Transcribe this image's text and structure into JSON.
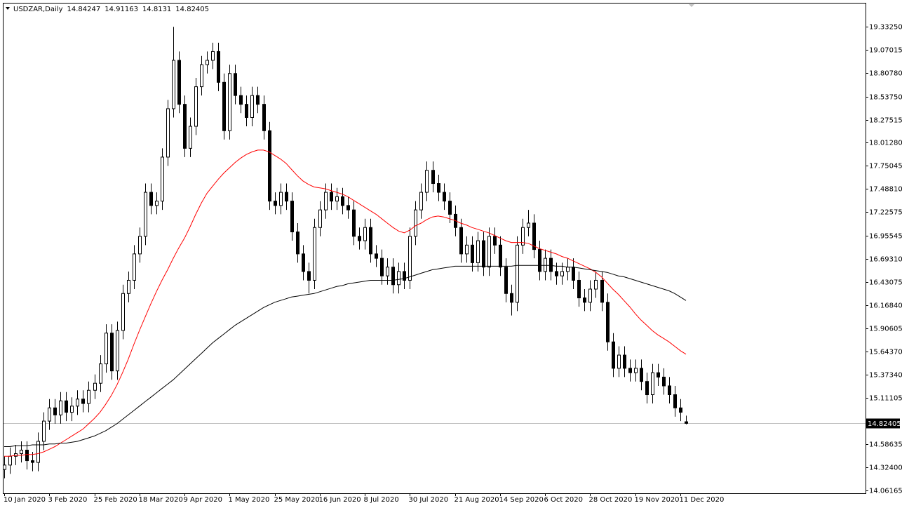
{
  "chart_data": {
    "type": "candlestick",
    "symbol": "USDZAR,Daily",
    "categories": [
      "10 Jan 2020",
      null,
      null,
      null,
      null,
      null,
      null,
      null,
      "3 Feb 2020",
      null,
      null,
      null,
      null,
      null,
      null,
      null,
      "25 Feb 2020",
      null,
      null,
      null,
      null,
      null,
      null,
      null,
      "18 Mar 2020",
      null,
      null,
      null,
      null,
      null,
      null,
      null,
      "9 Apr 2020",
      null,
      null,
      null,
      null,
      null,
      null,
      null,
      "1 May 2020",
      null,
      null,
      null,
      null,
      null,
      null,
      null,
      "25 May 2020",
      null,
      null,
      null,
      null,
      null,
      null,
      null,
      "16 Jun 2020",
      null,
      null,
      null,
      null,
      null,
      null,
      null,
      "8 Jul 2020",
      null,
      null,
      null,
      null,
      null,
      null,
      null,
      "30 Jul 2020",
      null,
      null,
      null,
      null,
      null,
      null,
      null,
      "21 Aug 2020",
      null,
      null,
      null,
      null,
      null,
      null,
      null,
      "14 Sep 2020",
      null,
      null,
      null,
      null,
      null,
      null,
      null,
      "6 Oct 2020",
      null,
      null,
      null,
      null,
      null,
      null,
      null,
      "28 Oct 2020",
      null,
      null,
      null,
      null,
      null,
      null,
      null,
      "19 Nov 2020",
      null,
      null,
      null,
      null,
      null,
      null,
      null,
      "11 Dec 2020",
      null
    ],
    "open": [
      14.3,
      14.35,
      14.45,
      14.48,
      14.52,
      14.4,
      14.38,
      14.62,
      14.85,
      15.0,
      14.92,
      15.08,
      14.95,
      15.02,
      15.1,
      15.05,
      15.2,
      15.28,
      15.5,
      15.85,
      15.42,
      15.88,
      16.3,
      16.45,
      16.75,
      16.95,
      17.45,
      17.3,
      17.35,
      17.85,
      18.4,
      18.95,
      18.45,
      17.95,
      18.2,
      18.65,
      18.9,
      18.95,
      19.05,
      18.7,
      18.15,
      18.8,
      18.55,
      18.45,
      18.3,
      18.55,
      18.45,
      18.15,
      17.35,
      17.3,
      17.45,
      17.35,
      17.0,
      16.75,
      16.55,
      16.45,
      17.05,
      17.25,
      17.45,
      17.35,
      17.4,
      17.3,
      17.25,
      16.95,
      16.9,
      17.05,
      16.75,
      16.7,
      16.5,
      16.6,
      16.4,
      16.55,
      16.45,
      16.95,
      17.25,
      17.45,
      17.7,
      17.55,
      17.45,
      17.35,
      17.2,
      17.05,
      16.75,
      16.85,
      16.65,
      16.9,
      16.6,
      16.95,
      16.85,
      16.6,
      16.3,
      16.2,
      16.85,
      17.05,
      17.1,
      16.8,
      16.55,
      16.7,
      16.55,
      16.5,
      16.55,
      16.6,
      16.45,
      16.25,
      16.2,
      16.35,
      16.45,
      16.2,
      15.75,
      15.45,
      15.6,
      15.45,
      15.4,
      15.45,
      15.3,
      15.15,
      15.4,
      15.35,
      15.25,
      15.15,
      15.0,
      14.84247
    ],
    "high": [
      14.45,
      14.55,
      14.58,
      14.62,
      14.62,
      14.5,
      14.72,
      14.95,
      15.1,
      15.1,
      15.18,
      15.18,
      15.12,
      15.2,
      15.2,
      15.3,
      15.38,
      15.6,
      15.95,
      15.95,
      15.98,
      16.4,
      16.55,
      16.85,
      17.05,
      17.55,
      17.55,
      17.45,
      17.95,
      18.5,
      19.33,
      19.05,
      18.55,
      18.3,
      18.75,
      19.0,
      19.05,
      19.15,
      19.15,
      18.8,
      18.9,
      18.9,
      18.65,
      18.55,
      18.65,
      18.65,
      18.55,
      18.25,
      17.45,
      17.55,
      17.55,
      17.45,
      17.1,
      16.85,
      16.65,
      17.15,
      17.35,
      17.55,
      17.55,
      17.5,
      17.5,
      17.4,
      17.35,
      17.05,
      17.15,
      17.15,
      16.85,
      16.8,
      16.7,
      16.7,
      16.65,
      16.65,
      17.05,
      17.35,
      17.55,
      17.8,
      17.8,
      17.65,
      17.55,
      17.45,
      17.3,
      17.15,
      16.95,
      16.95,
      17.0,
      17.0,
      17.05,
      17.05,
      16.95,
      16.7,
      16.4,
      16.95,
      17.15,
      17.25,
      17.2,
      16.9,
      16.8,
      16.8,
      16.65,
      16.65,
      16.7,
      16.7,
      16.55,
      16.35,
      16.45,
      16.55,
      16.55,
      16.3,
      15.85,
      15.7,
      15.7,
      15.55,
      15.55,
      15.55,
      15.4,
      15.5,
      15.5,
      15.45,
      15.35,
      15.25,
      15.1,
      14.91163
    ],
    "low": [
      14.2,
      14.25,
      14.35,
      14.38,
      14.3,
      14.28,
      14.28,
      14.52,
      14.75,
      14.82,
      14.82,
      14.85,
      14.85,
      14.92,
      14.95,
      14.95,
      15.1,
      15.18,
      15.4,
      15.32,
      15.32,
      15.78,
      16.2,
      16.35,
      16.65,
      16.85,
      17.2,
      17.2,
      17.25,
      17.75,
      18.3,
      18.35,
      17.85,
      17.85,
      18.1,
      18.55,
      18.8,
      18.85,
      18.6,
      18.05,
      18.05,
      18.45,
      18.35,
      18.2,
      18.2,
      18.35,
      18.05,
      17.25,
      17.2,
      17.2,
      17.25,
      16.9,
      16.65,
      16.45,
      16.3,
      16.35,
      16.95,
      17.15,
      17.25,
      17.25,
      17.2,
      17.15,
      16.85,
      16.8,
      16.8,
      16.65,
      16.6,
      16.4,
      16.4,
      16.3,
      16.3,
      16.35,
      16.35,
      16.85,
      17.15,
      17.35,
      17.45,
      17.35,
      17.25,
      17.1,
      16.95,
      16.65,
      16.65,
      16.55,
      16.55,
      16.5,
      16.5,
      16.75,
      16.5,
      16.2,
      16.05,
      16.1,
      16.75,
      16.95,
      16.7,
      16.45,
      16.45,
      16.45,
      16.4,
      16.4,
      16.45,
      16.35,
      16.15,
      16.1,
      16.1,
      16.25,
      16.1,
      15.65,
      15.35,
      15.35,
      15.35,
      15.3,
      15.3,
      15.2,
      15.05,
      15.05,
      15.25,
      15.15,
      15.05,
      14.9,
      14.85,
      14.8131
    ],
    "close": [
      14.35,
      14.45,
      14.48,
      14.52,
      14.4,
      14.38,
      14.62,
      14.85,
      15.0,
      14.92,
      15.08,
      14.95,
      15.02,
      15.1,
      15.05,
      15.2,
      15.28,
      15.5,
      15.85,
      15.42,
      15.88,
      16.3,
      16.45,
      16.75,
      16.95,
      17.45,
      17.3,
      17.35,
      17.85,
      18.4,
      18.95,
      18.45,
      17.95,
      18.2,
      18.65,
      18.9,
      18.95,
      19.05,
      18.7,
      18.15,
      18.8,
      18.55,
      18.45,
      18.3,
      18.55,
      18.45,
      18.15,
      17.35,
      17.3,
      17.45,
      17.35,
      17.0,
      16.75,
      16.55,
      16.45,
      17.05,
      17.25,
      17.45,
      17.35,
      17.4,
      17.3,
      17.25,
      16.95,
      16.9,
      17.05,
      16.75,
      16.7,
      16.5,
      16.6,
      16.4,
      16.55,
      16.45,
      16.95,
      17.25,
      17.45,
      17.7,
      17.55,
      17.45,
      17.35,
      17.2,
      17.05,
      16.75,
      16.85,
      16.65,
      16.9,
      16.6,
      16.95,
      16.85,
      16.6,
      16.3,
      16.2,
      16.85,
      17.05,
      17.1,
      16.8,
      16.55,
      16.7,
      16.55,
      16.5,
      16.55,
      16.6,
      16.45,
      16.25,
      16.2,
      16.35,
      16.45,
      16.2,
      15.75,
      15.45,
      15.6,
      15.45,
      15.4,
      15.45,
      15.3,
      15.15,
      15.4,
      15.35,
      15.25,
      15.15,
      15.0,
      14.95,
      14.82405
    ],
    "up_color": "#ffffff",
    "down_color": "#000000",
    "wick_color": "#000000",
    "series": [
      {
        "color": "#ff0000",
        "values": [
          14.45,
          14.45,
          14.46,
          14.46,
          14.47,
          14.47,
          14.48,
          14.5,
          14.53,
          14.56,
          14.6,
          14.64,
          14.68,
          14.72,
          14.76,
          14.82,
          14.88,
          14.95,
          15.04,
          15.14,
          15.26,
          15.4,
          15.55,
          15.72,
          15.88,
          16.03,
          16.18,
          16.32,
          16.45,
          16.57,
          16.7,
          16.82,
          16.93,
          17.06,
          17.2,
          17.33,
          17.44,
          17.52,
          17.6,
          17.67,
          17.73,
          17.79,
          17.84,
          17.88,
          17.91,
          17.93,
          17.93,
          17.91,
          17.87,
          17.83,
          17.78,
          17.71,
          17.64,
          17.58,
          17.54,
          17.51,
          17.5,
          17.49,
          17.47,
          17.45,
          17.43,
          17.4,
          17.36,
          17.32,
          17.28,
          17.24,
          17.2,
          17.15,
          17.1,
          17.05,
          17.01,
          16.99,
          17.02,
          17.07,
          17.1,
          17.14,
          17.17,
          17.18,
          17.17,
          17.15,
          17.13,
          17.1,
          17.08,
          17.05,
          17.03,
          17.01,
          16.99,
          16.96,
          16.93,
          16.9,
          16.88,
          16.88,
          16.88,
          16.87,
          16.84,
          16.81,
          16.79,
          16.77,
          16.75,
          16.72,
          16.7,
          16.67,
          16.64,
          16.61,
          16.58,
          16.54,
          16.49,
          16.42,
          16.35,
          16.29,
          16.22,
          16.15,
          16.07,
          16.0,
          15.94,
          15.88,
          15.83,
          15.79,
          15.75,
          15.7,
          15.65,
          15.61
        ]
      },
      {
        "color": "#000000",
        "values": [
          14.56,
          14.56,
          14.57,
          14.57,
          14.57,
          14.58,
          14.58,
          14.58,
          14.59,
          14.59,
          14.6,
          14.6,
          14.61,
          14.62,
          14.64,
          14.66,
          14.68,
          14.71,
          14.74,
          14.78,
          14.82,
          14.87,
          14.92,
          14.97,
          15.02,
          15.07,
          15.12,
          15.17,
          15.22,
          15.27,
          15.32,
          15.38,
          15.44,
          15.5,
          15.56,
          15.62,
          15.68,
          15.74,
          15.79,
          15.84,
          15.89,
          15.94,
          15.98,
          16.02,
          16.06,
          16.1,
          16.14,
          16.17,
          16.2,
          16.22,
          16.24,
          16.26,
          16.27,
          16.28,
          16.29,
          16.3,
          16.32,
          16.34,
          16.36,
          16.38,
          16.39,
          16.41,
          16.42,
          16.43,
          16.44,
          16.45,
          16.45,
          16.45,
          16.45,
          16.45,
          16.46,
          16.47,
          16.49,
          16.51,
          16.53,
          16.55,
          16.57,
          16.58,
          16.59,
          16.6,
          16.61,
          16.61,
          16.61,
          16.61,
          16.61,
          16.61,
          16.61,
          16.61,
          16.61,
          16.61,
          16.61,
          16.62,
          16.62,
          16.62,
          16.62,
          16.62,
          16.62,
          16.62,
          16.61,
          16.61,
          16.6,
          16.6,
          16.59,
          16.58,
          16.57,
          16.56,
          16.55,
          16.54,
          16.52,
          16.5,
          16.49,
          16.47,
          16.45,
          16.43,
          16.41,
          16.39,
          16.37,
          16.35,
          16.33,
          16.3,
          16.26,
          16.22
        ]
      }
    ],
    "ylim": [
      14.0297,
      19.6036
    ],
    "yticks": [
      {
        "value": 19.3325,
        "label": "19.33250"
      },
      {
        "value": 19.07015,
        "label": "19.07015"
      },
      {
        "value": 18.8078,
        "label": "18.80780"
      },
      {
        "value": 18.5375,
        "label": "18.53750"
      },
      {
        "value": 18.27515,
        "label": "18.27515"
      },
      {
        "value": 18.0128,
        "label": "18.01280"
      },
      {
        "value": 17.75045,
        "label": "17.75045"
      },
      {
        "value": 17.4881,
        "label": "17.48810"
      },
      {
        "value": 17.22575,
        "label": "17.22575"
      },
      {
        "value": 16.95545,
        "label": "16.95545"
      },
      {
        "value": 16.6931,
        "label": "16.69310"
      },
      {
        "value": 16.43075,
        "label": "16.43075"
      },
      {
        "value": 16.1684,
        "label": "16.16840"
      },
      {
        "value": 15.90605,
        "label": "15.90605"
      },
      {
        "value": 15.6437,
        "label": "15.64370"
      },
      {
        "value": 15.3734,
        "label": "15.37340"
      },
      {
        "value": 15.11105,
        "label": "15.11105"
      },
      {
        "value": 14.58635,
        "label": "14.58635"
      },
      {
        "value": 14.324,
        "label": "14.32400"
      },
      {
        "value": 14.06165,
        "label": "14.06165"
      }
    ],
    "grid": false
  }
}
